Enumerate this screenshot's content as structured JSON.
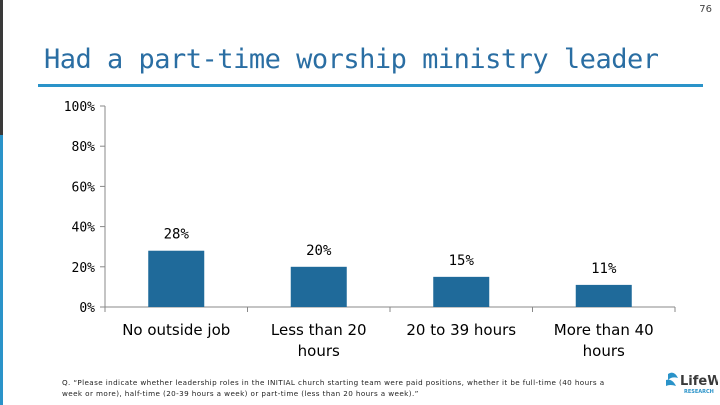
{
  "page_number": "76",
  "footnote": "Q. “Please indicate whether leadership roles in the INITIAL church starting team were paid positions, whether it be full-time (40 hours a week or more), half-time (20-39 hours a week) or part-time (less than 20 hours a week).”",
  "logo": {
    "brand": "LifeWay",
    "sub": "RESEARCH"
  },
  "colors": {
    "title": "#2a6ea3",
    "accent": "#2a93c9",
    "bar": "#1f6a9a"
  },
  "chart_data": {
    "type": "bar",
    "title": "Had a part-time worship ministry leader",
    "categories": [
      [
        "No outside job"
      ],
      [
        "Less than 20",
        "hours"
      ],
      [
        "20 to 39 hours"
      ],
      [
        "More than 40",
        "hours"
      ]
    ],
    "values": [
      28,
      20,
      15,
      11
    ],
    "data_labels": [
      "28%",
      "20%",
      "15%",
      "11%"
    ],
    "ylim": [
      0,
      100
    ],
    "yticks": [
      0,
      20,
      40,
      60,
      80,
      100
    ],
    "ytick_labels": [
      "0%",
      "20%",
      "40%",
      "60%",
      "80%",
      "100%"
    ],
    "xlabel": "",
    "ylabel": "",
    "grid": false,
    "legend": "none"
  }
}
